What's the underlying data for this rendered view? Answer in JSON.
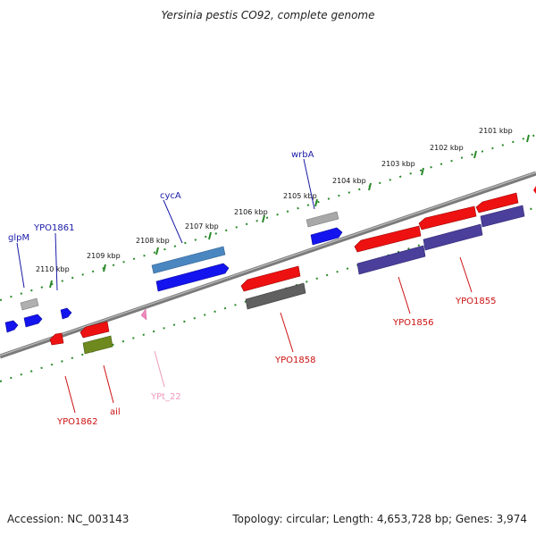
{
  "title": "Yersinia pestis CO92, complete genome",
  "footer": {
    "accession": "Accession: NC_003143",
    "summary": "Topology: circular; Length: 4,653,728 bp; Genes: 3,974"
  },
  "colors": {
    "backbone": "#888888",
    "tick": "#2a8a2a",
    "label_blue": "#1a1aa8",
    "label_red": "#cc1111",
    "label_pink": "#ee99bb"
  },
  "scale_ticks": [
    {
      "label": "2101 kbp"
    },
    {
      "label": "2102 kbp"
    },
    {
      "label": "2103 kbp"
    },
    {
      "label": "2104 kbp"
    },
    {
      "label": "2105 kbp"
    },
    {
      "label": "2106 kbp"
    },
    {
      "label": "2107 kbp"
    },
    {
      "label": "2108 kbp"
    },
    {
      "label": "2109 kbp"
    },
    {
      "label": "2110 kbp"
    }
  ],
  "genes": [
    {
      "name": "glpM",
      "strand": "forward",
      "color": "#2222ee"
    },
    {
      "name": "YPO1861",
      "strand": "forward",
      "color": "#2222ee"
    },
    {
      "name": "cycA",
      "strand": "forward",
      "color": "#4a86c0"
    },
    {
      "name": "wrbA",
      "strand": "forward",
      "color": "#a0a0a0"
    },
    {
      "name": "YPO1855",
      "strand": "reverse",
      "color": "#ee1111"
    },
    {
      "name": "YPO1856",
      "strand": "reverse",
      "color": "#ee1111"
    },
    {
      "name": "YPO1858",
      "strand": "reverse",
      "color": "#ee1111"
    },
    {
      "name": "YPO1862",
      "strand": "reverse",
      "color": "#ee1111"
    },
    {
      "name": "ail",
      "strand": "reverse",
      "color": "#ee1111"
    },
    {
      "name": "YPt_22",
      "strand": "reverse",
      "color": "#ee88bb"
    }
  ]
}
